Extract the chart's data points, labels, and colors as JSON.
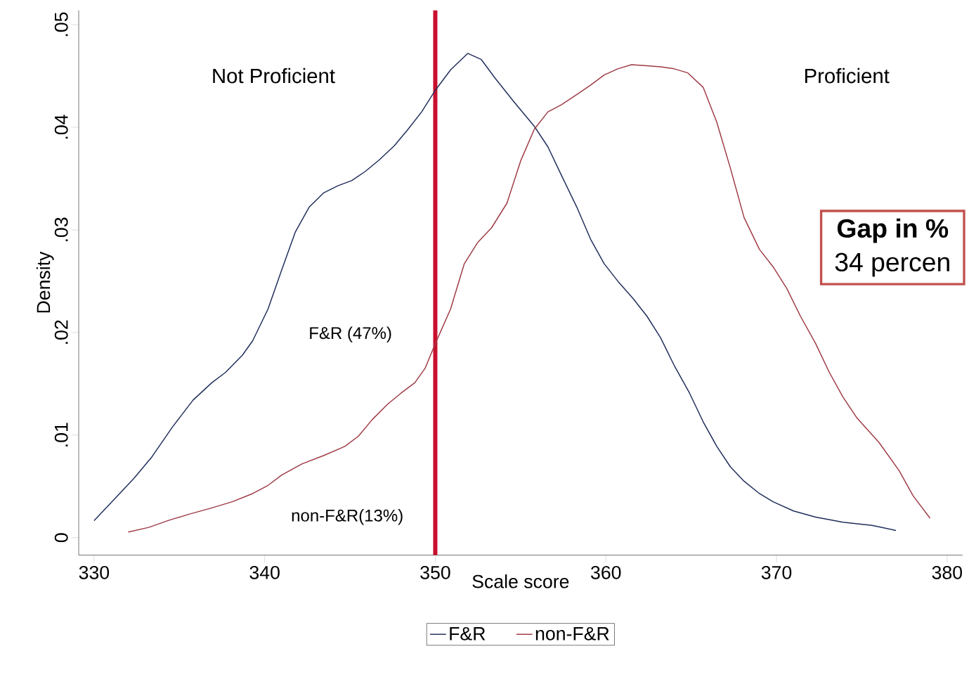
{
  "chart_data": {
    "type": "line",
    "xlabel": "Scale score",
    "ylabel": "Density",
    "xlim": [
      329.1,
      380.9
    ],
    "ylim": [
      -0.0017,
      0.0514
    ],
    "xticks": [
      330,
      340,
      350,
      360,
      370,
      380
    ],
    "yticks": [
      {
        "value": 0,
        "label": "0"
      },
      {
        "value": 0.01,
        "label": ".01"
      },
      {
        "value": 0.02,
        "label": ".02"
      },
      {
        "value": 0.03,
        "label": ".03"
      },
      {
        "value": 0.04,
        "label": ".04"
      },
      {
        "value": 0.05,
        "label": ".05"
      }
    ],
    "grid": false,
    "legend": "bottom",
    "marker": "none",
    "line_style": "solid",
    "series": [
      {
        "name": "F&R",
        "color": "#1f2d5a",
        "x": [
          330,
          331.1,
          332.35,
          333.4,
          334.6,
          335.8,
          336.9,
          337.7,
          338.7,
          339.3,
          340.2,
          341.0,
          341.8,
          342.6,
          343.45,
          344.3,
          345.1,
          345.9,
          346.7,
          347.6,
          348.4,
          349.2,
          350.0,
          350.9,
          351.9,
          352.7,
          353.5,
          354.6,
          355.8,
          356.6,
          357.4,
          358.3,
          359.1,
          359.9,
          360.7,
          361.6,
          362.4,
          363.2,
          364.0,
          364.9,
          365.7,
          366.5,
          367.3,
          368.1,
          369.0,
          369.8,
          371.0,
          372.3,
          373.9,
          375.6,
          377.0
        ],
        "values": [
          0.00165,
          0.0036,
          0.0058,
          0.0079,
          0.0108,
          0.0134,
          0.0151,
          0.0161,
          0.0178,
          0.0192,
          0.0223,
          0.0261,
          0.0298,
          0.0322,
          0.0336,
          0.0343,
          0.0348,
          0.0357,
          0.0368,
          0.0382,
          0.0398,
          0.0415,
          0.0436,
          0.0456,
          0.0472,
          0.0466,
          0.0448,
          0.0425,
          0.0401,
          0.0381,
          0.0353,
          0.0322,
          0.0291,
          0.0267,
          0.025,
          0.0233,
          0.0216,
          0.0195,
          0.0168,
          0.0141,
          0.0113,
          0.0089,
          0.0069,
          0.0055,
          0.0043,
          0.0035,
          0.0026,
          0.002,
          0.0015,
          0.0012,
          0.0007
        ]
      },
      {
        "name": "non-F&R",
        "color": "#9e3a45",
        "x": [
          332.0,
          333.2,
          334.4,
          335.6,
          336.9,
          338.1,
          339.3,
          340.2,
          341.0,
          342.2,
          343.45,
          344.7,
          345.5,
          346.3,
          347.2,
          348.0,
          348.8,
          349.4,
          350.0,
          350.9,
          351.7,
          352.5,
          353.3,
          354.2,
          355.0,
          355.8,
          356.6,
          357.4,
          358.3,
          359.1,
          359.9,
          360.7,
          361.5,
          362.4,
          363.2,
          364.0,
          364.8,
          365.7,
          366.5,
          367.3,
          368.1,
          369.0,
          369.8,
          370.6,
          371.4,
          372.3,
          373.1,
          373.9,
          374.7,
          376.0,
          377.2,
          378.0,
          379.0
        ],
        "values": [
          0.00055,
          0.001,
          0.0017,
          0.0023,
          0.0029,
          0.0035,
          0.0043,
          0.0051,
          0.0061,
          0.0072,
          0.008,
          0.0089,
          0.0099,
          0.0115,
          0.013,
          0.0141,
          0.0151,
          0.0165,
          0.0189,
          0.0223,
          0.0267,
          0.0288,
          0.0302,
          0.0326,
          0.0367,
          0.0398,
          0.0415,
          0.0422,
          0.0432,
          0.0441,
          0.0451,
          0.0457,
          0.0461,
          0.046,
          0.0459,
          0.0457,
          0.0453,
          0.0439,
          0.0405,
          0.036,
          0.0312,
          0.0281,
          0.0264,
          0.0243,
          0.0216,
          0.0189,
          0.0161,
          0.0137,
          0.0117,
          0.0093,
          0.0065,
          0.0041,
          0.0019
        ]
      }
    ],
    "ref_lines": [
      {
        "axis": "x",
        "value": 350,
        "color": "#c8102e"
      }
    ],
    "annotations": [
      "Not Proficient",
      "Proficient",
      "F&R (47%)",
      "non-F&R(13%)",
      "Gap in %",
      "34 percen"
    ]
  }
}
